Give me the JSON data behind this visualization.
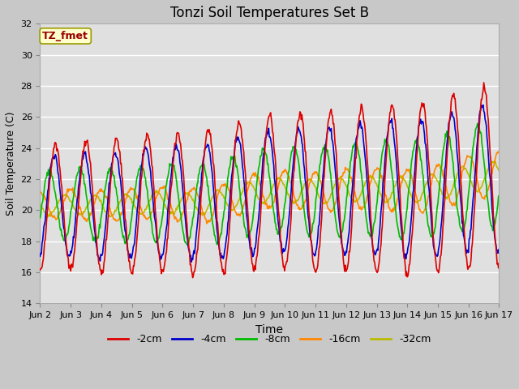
{
  "title": "Tonzi Soil Temperatures Set B",
  "xlabel": "Time",
  "ylabel": "Soil Temperature (C)",
  "ylim": [
    14,
    32
  ],
  "yticks": [
    14,
    16,
    18,
    20,
    22,
    24,
    26,
    28,
    30,
    32
  ],
  "fig_bg_color": "#c8c8c8",
  "plot_bg_color": "#e0e0e0",
  "series_colors": [
    "#dd0000",
    "#0000cc",
    "#00bb00",
    "#ff8800",
    "#bbbb00"
  ],
  "series_labels": [
    "-2cm",
    "-4cm",
    "-8cm",
    "-16cm",
    "-32cm"
  ],
  "annotation_text": "TZ_fmet",
  "annotation_bg": "#ffffcc",
  "annotation_border": "#999900",
  "annotation_text_color": "#990000",
  "n_days": 15,
  "samples_per_day": 48
}
